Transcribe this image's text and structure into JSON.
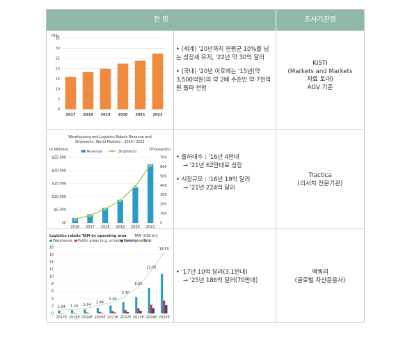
{
  "header": {
    "forecast": "전 망",
    "source": "조사기관명"
  },
  "rows": [
    {
      "bullets": [
        "(세계) '20년까지 연평균 10%를 넘는 성장세 유지, '22년 약 30억 달러",
        "(국내) '20년 이후에는 '15년(약 3,500억원)의 약 2배 수준인 약 7천억원 돌파 전망"
      ],
      "source": [
        "KISTI",
        "(Markets and Markets",
        "자료 토대)",
        "AGV 기준"
      ]
    },
    {
      "bullets": [
        "출하대수 : '16년 4만대",
        "→ '21년 62만대로 성장",
        "시장규모 : '16년 19억 달러",
        "→ '21년 224억 달러"
      ],
      "source": [
        "Tractica",
        "(리서치 전문기관)"
      ]
    },
    {
      "bullets": [
        "'17년  10억 달러(3.1만대)",
        "→ '25년 186억 달러(70만대)"
      ],
      "source": [
        "맥쿼리",
        "(글로벌 자산운용사)"
      ]
    }
  ],
  "chart_data": [
    {
      "type": "bar",
      "ylabel": "(억$)",
      "categories": [
        "2017",
        "2018",
        "2019",
        "2020",
        "2021",
        "2022"
      ],
      "values": [
        16,
        18.5,
        20,
        22.5,
        24,
        27.5
      ],
      "ylim": [
        0,
        35
      ],
      "yticks": [
        "35",
        "30",
        "25",
        "20",
        "15",
        "10",
        "5",
        "0"
      ],
      "colors": {
        "bar": "#ef8a3e"
      }
    },
    {
      "type": "bar",
      "title": "Warehousing and Logistics Robots Revenue and",
      "subtitle": "Shipments, World Markets : 2016~2021",
      "ylabel_left": "($ Millions)",
      "ylabel_right": "(Thousands)",
      "legend": [
        "Revenue",
        "Shipments"
      ],
      "categories": [
        "2016",
        "2017",
        "2018",
        "2019",
        "2020",
        "2021"
      ],
      "series": [
        {
          "name": "Revenue",
          "values": [
            1900,
            3400,
            5700,
            8800,
            13600,
            22400
          ]
        },
        {
          "name": "Shipments",
          "values": [
            40,
            80,
            150,
            240,
            390,
            620
          ]
        }
      ],
      "yticks_left": [
        "$25,000",
        "$20,000",
        "$15,000",
        "$10,000",
        "$5,000",
        "$0"
      ],
      "yticks_right": [
        "700",
        "600",
        "500",
        "400",
        "300",
        "200",
        "100",
        "0"
      ],
      "ylim_left": [
        0,
        25000
      ],
      "ylim_right": [
        0,
        700
      ],
      "colors": {
        "revenue": "#2a9ac8",
        "shipments": "#8cc63f"
      }
    },
    {
      "type": "bar",
      "title": "Logistics robots TAM by operating area",
      "unit": "TAM (US$ bn)",
      "legend": [
        "Warehouse",
        "Public areas (e.g. schools, hospitals, etc.)",
        "Parking",
        "Total"
      ],
      "categories": [
        "2017E",
        "2018E",
        "2019E",
        "2020E",
        "2021E",
        "2022E",
        "2023E",
        "2024E",
        "2025E"
      ],
      "series": [
        {
          "name": "Warehouse",
          "values": [
            0.9,
            1.0,
            1.2,
            1.7,
            2.4,
            3.4,
            5.0,
            7.7,
            12.0
          ]
        },
        {
          "name": "Public areas",
          "values": [
            0.1,
            0.2,
            0.3,
            0.5,
            0.7,
            1.0,
            1.6,
            2.6,
            3.9
          ]
        },
        {
          "name": "Parking",
          "values": [
            0.0,
            0.0,
            0.1,
            0.2,
            0.3,
            0.4,
            0.8,
            1.6,
            2.5
          ]
        },
        {
          "name": "Total",
          "values": [
            1.04,
            1.24,
            1.64,
            2.44,
            3.4,
            5.3,
            8.0,
            13.0,
            18.55
          ]
        }
      ],
      "data_labels": [
        "1.04",
        "1.24",
        "1.64",
        "2.44",
        "3.40",
        "5.30",
        "8.00",
        "13.00",
        "18.55"
      ],
      "yticks": [
        "18",
        "16",
        "14",
        "12",
        "10",
        "8",
        "6",
        "4",
        "2",
        "0"
      ],
      "ylim": [
        0,
        20
      ],
      "colors": {
        "warehouse": "#2a9ac8",
        "public": "#c0392b",
        "parking": "#2c3e8f",
        "total": "#9cc45a"
      }
    }
  ]
}
